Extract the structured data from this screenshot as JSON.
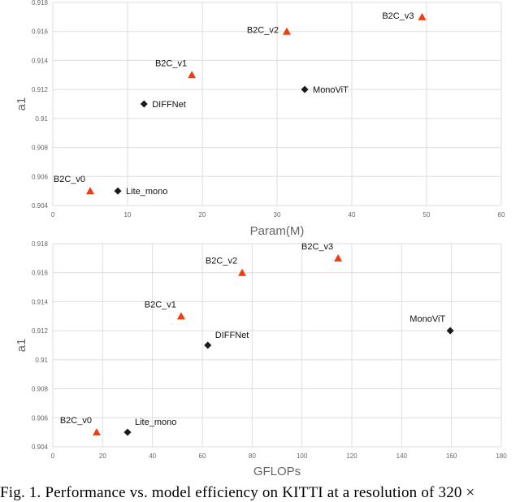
{
  "caption": "Fig. 1.  Performance vs. model efficiency on KITTI at a resolution of 320 ×",
  "colors": {
    "b2c": "#f03c0f",
    "other": "#1a1a1a",
    "grid": "#dedede",
    "tick": "#666666",
    "axis_label": "#666666"
  },
  "chart_data": [
    {
      "type": "scatter",
      "title": "",
      "xlabel": "Param(M)",
      "ylabel": "a1",
      "xlim": [
        0,
        60
      ],
      "ylim": [
        0.904,
        0.918
      ],
      "xticks": [
        0,
        10,
        20,
        30,
        40,
        50,
        60
      ],
      "yticks": [
        0.904,
        0.906,
        0.908,
        0.91,
        0.912,
        0.914,
        0.916,
        0.918
      ],
      "xtick_labels": [
        "0",
        "10",
        "20",
        "30",
        "40",
        "50",
        "60"
      ],
      "ytick_labels": [
        "0.904",
        "0.906",
        "0.908",
        "0.91",
        "0.912",
        "0.914",
        "0.916",
        "0.918"
      ],
      "grid": true,
      "points": [
        {
          "label": "B2C_v0",
          "x": 5.0,
          "y": 0.905,
          "marker": "triangle",
          "label_pos": "above-left"
        },
        {
          "label": "Lite_mono",
          "x": 8.7,
          "y": 0.905,
          "marker": "diamond",
          "label_pos": "right"
        },
        {
          "label": "DIFFNet",
          "x": 12.2,
          "y": 0.911,
          "marker": "diamond",
          "label_pos": "right"
        },
        {
          "label": "B2C_v1",
          "x": 18.6,
          "y": 0.913,
          "marker": "triangle",
          "label_pos": "above-left"
        },
        {
          "label": "B2C_v2",
          "x": 31.3,
          "y": 0.916,
          "marker": "triangle",
          "label_pos": "left"
        },
        {
          "label": "MonoViT",
          "x": 33.7,
          "y": 0.912,
          "marker": "diamond",
          "label_pos": "right"
        },
        {
          "label": "B2C_v3",
          "x": 49.4,
          "y": 0.917,
          "marker": "triangle",
          "label_pos": "left"
        }
      ]
    },
    {
      "type": "scatter",
      "title": "",
      "xlabel": "GFLOPs",
      "ylabel": "a1",
      "xlim": [
        0,
        180
      ],
      "ylim": [
        0.904,
        0.918
      ],
      "xticks": [
        0,
        20,
        40,
        60,
        80,
        100,
        120,
        140,
        160,
        180
      ],
      "yticks": [
        0.904,
        0.906,
        0.908,
        0.91,
        0.912,
        0.914,
        0.916,
        0.918
      ],
      "xtick_labels": [
        "0",
        "20",
        "40",
        "60",
        "80",
        "100",
        "120",
        "140",
        "160",
        "180"
      ],
      "ytick_labels": [
        "0.904",
        "0.906",
        "0.908",
        "0.91",
        "0.912",
        "0.914",
        "0.916",
        "0.918"
      ],
      "grid": true,
      "points": [
        {
          "label": "B2C_v0",
          "x": 17.6,
          "y": 0.905,
          "marker": "triangle",
          "label_pos": "above-left"
        },
        {
          "label": "Lite_mono",
          "x": 30.0,
          "y": 0.905,
          "marker": "diamond",
          "label_pos": "above-right"
        },
        {
          "label": "DIFFNet",
          "x": 62.2,
          "y": 0.911,
          "marker": "diamond",
          "label_pos": "above-right"
        },
        {
          "label": "B2C_v1",
          "x": 51.5,
          "y": 0.913,
          "marker": "triangle",
          "label_pos": "above-left"
        },
        {
          "label": "B2C_v2",
          "x": 76.0,
          "y": 0.916,
          "marker": "triangle",
          "label_pos": "above-left"
        },
        {
          "label": "B2C_v3",
          "x": 114.5,
          "y": 0.917,
          "marker": "triangle",
          "label_pos": "above-left"
        },
        {
          "label": "MonoViT",
          "x": 159.5,
          "y": 0.912,
          "marker": "diamond",
          "label_pos": "above-left"
        }
      ]
    }
  ]
}
